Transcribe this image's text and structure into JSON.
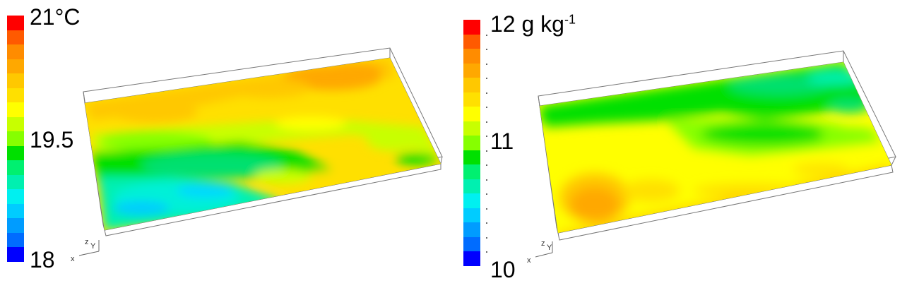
{
  "panels": [
    {
      "colorbar": {
        "max_label": "21°C",
        "mid_label": "19.5",
        "min_label": "18",
        "range": [
          18,
          21
        ],
        "colors": [
          "#ff0000",
          "#ff5a00",
          "#ff8c00",
          "#ffa800",
          "#ffc800",
          "#ffe000",
          "#ffff00",
          "#c8ff00",
          "#86ff00",
          "#00e000",
          "#00f070",
          "#00f0b0",
          "#00f0f0",
          "#00ccff",
          "#009cff",
          "#006cff",
          "#0000ff"
        ]
      },
      "axis_labels": {
        "x": "x",
        "y": "Y",
        "z": "z"
      }
    },
    {
      "colorbar": {
        "max_label_main": "12 g kg",
        "max_label_sup": "-1",
        "mid_label": "11",
        "min_label": "10",
        "range": [
          10,
          12
        ],
        "colors": [
          "#ff0000",
          "#ff5a00",
          "#ff8c00",
          "#ffa800",
          "#ffc800",
          "#ffe000",
          "#ffff00",
          "#c8ff00",
          "#86ff00",
          "#00e000",
          "#00f070",
          "#00f0b0",
          "#00f0f0",
          "#00ccff",
          "#009cff",
          "#006cff",
          "#0000ff"
        ]
      },
      "axis_labels": {
        "x": "x",
        "y": "Y",
        "z": "z"
      }
    }
  ]
}
